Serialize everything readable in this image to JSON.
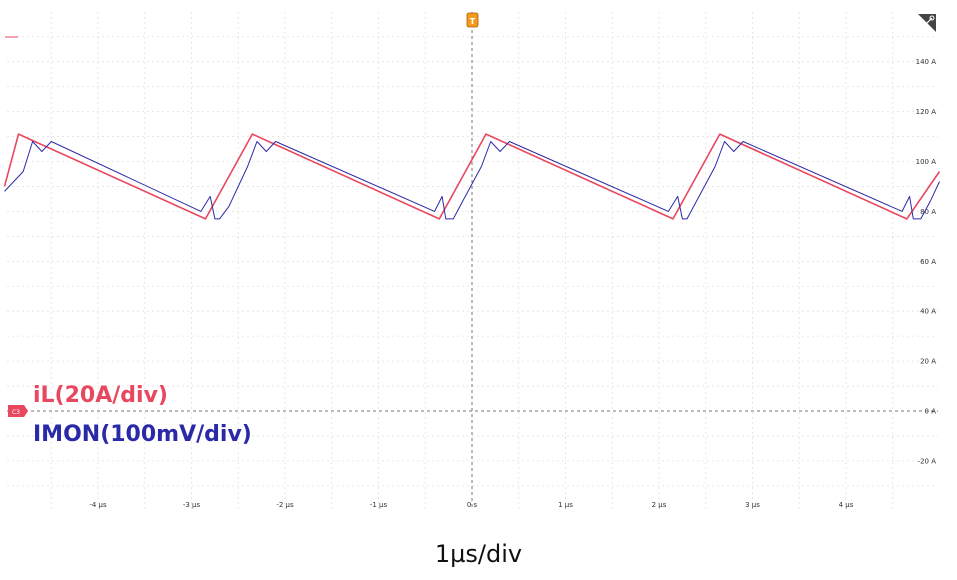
{
  "chart_data": {
    "type": "line",
    "xlabel": "1µs/div",
    "xlim": [
      -5,
      5
    ],
    "ylim": [
      -30,
      160
    ],
    "x_ticks": [
      -4,
      -3,
      -2,
      -1,
      0,
      1,
      2,
      3,
      4
    ],
    "x_tick_labels": [
      "-4 µs",
      "-3 µs",
      "-2 µs",
      "-1 µs",
      "0 s",
      "1 µs",
      "2 µs",
      "3 µs",
      "4 µs"
    ],
    "y_ticks": [
      140,
      120,
      100,
      80,
      60,
      40,
      20,
      0,
      -20
    ],
    "y_tick_labels": [
      "140 A",
      "120 A",
      "100 A",
      "80 A",
      "60 A",
      "40 A",
      "20 A",
      "0 A",
      "-20 A"
    ],
    "grid": true,
    "markers": {
      "trigger": "T",
      "channel": "C3"
    },
    "series": [
      {
        "name": "iL(20A/div)",
        "color": "#e8475f",
        "x": [
          -5.0,
          -4.85,
          -2.85,
          -2.35,
          -0.35,
          0.15,
          2.15,
          2.65,
          4.65,
          5.0
        ],
        "y": [
          90,
          111,
          77,
          111,
          77,
          111,
          77,
          111,
          77,
          96
        ]
      },
      {
        "name": "IMON(100mV/div)",
        "color": "#2a2aa8",
        "x": [
          -5.0,
          -4.8,
          -4.7,
          -4.6,
          -4.5,
          -2.9,
          -2.8,
          -2.75,
          -2.7,
          -2.6,
          -2.4,
          -2.3,
          -2.2,
          -2.1,
          -0.4,
          -0.32,
          -0.28,
          -0.2,
          -0.1,
          0.1,
          0.2,
          0.3,
          0.4,
          2.1,
          2.2,
          2.25,
          2.3,
          2.4,
          2.6,
          2.7,
          2.8,
          2.9,
          4.6,
          4.68,
          4.72,
          4.8,
          4.9,
          5.0
        ],
        "y": [
          88,
          96,
          108,
          104,
          108,
          80,
          86,
          77,
          77,
          82,
          98,
          108,
          104,
          108,
          80,
          86,
          77,
          77,
          84,
          98,
          108,
          104,
          108,
          80,
          86,
          77,
          77,
          84,
          98,
          108,
          104,
          108,
          80,
          86,
          77,
          77,
          84,
          92
        ]
      }
    ]
  }
}
